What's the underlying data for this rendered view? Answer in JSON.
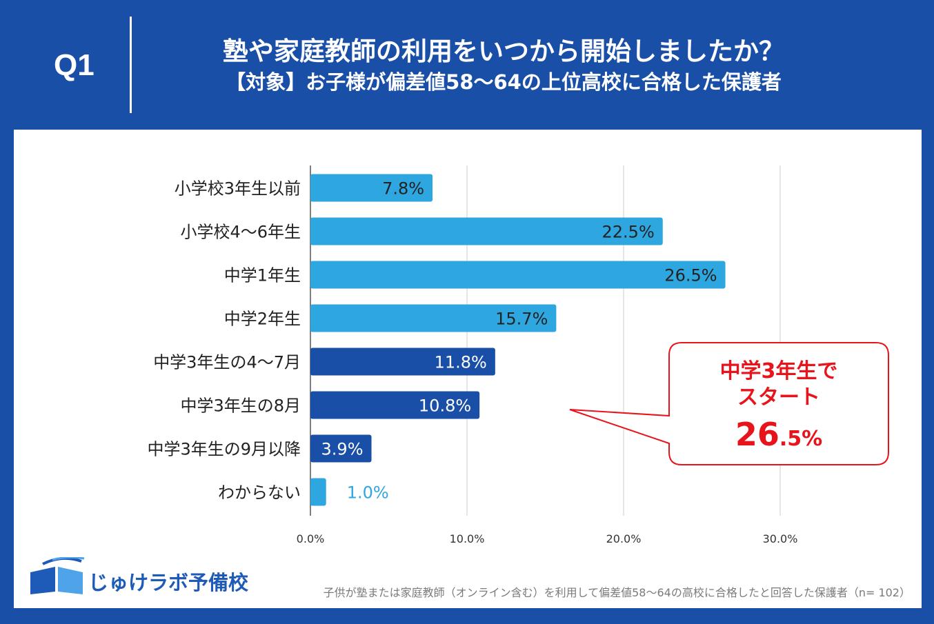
{
  "header": {
    "question_label": "Q1",
    "title": "塾や家庭教師の利用をいつから開始しましたか？",
    "subtitle": "【対象】お子様が偏差値58〜64の上位高校に合格した保護者"
  },
  "chart_data": {
    "type": "bar",
    "orientation": "horizontal",
    "categories": [
      "小学校3年生以前",
      "小学校4〜6年生",
      "中学1年生",
      "中学2年生",
      "中学3年生の4〜7月",
      "中学3年生の8月",
      "中学3年生の9月以降",
      "わからない"
    ],
    "values": [
      7.8,
      22.5,
      26.5,
      15.7,
      11.8,
      10.8,
      3.9,
      1.0
    ],
    "value_labels": [
      "7.8%",
      "22.5%",
      "26.5%",
      "15.7%",
      "11.8%",
      "10.8%",
      "3.9%",
      "1.0%"
    ],
    "highlight": [
      false,
      false,
      false,
      false,
      true,
      true,
      true,
      false
    ],
    "xlim": [
      0,
      34
    ],
    "xticks": [
      0,
      10,
      20,
      30
    ],
    "xtick_labels": [
      "0.0%",
      "10.0%",
      "20.0%",
      "30.0%"
    ],
    "grid": true,
    "colors": {
      "bar": "#2ea6e0",
      "bar_highlight": "#1a4fa8",
      "label_outside": "#2ea6e0"
    }
  },
  "callout": {
    "line1": "中学3年生で",
    "line2": "スタート",
    "value_big": "26",
    "value_small": ".5%",
    "color": "#e8141b"
  },
  "logo": {
    "text": "じゅけラボ予備校",
    "icon": "book-icon"
  },
  "note": "子供が塾または家庭教師（オンライン含む）を利用して偏差値58〜64の高校に合格したと回答した保護者（n= 102）",
  "colors": {
    "brand_blue": "#1a4fa8"
  }
}
